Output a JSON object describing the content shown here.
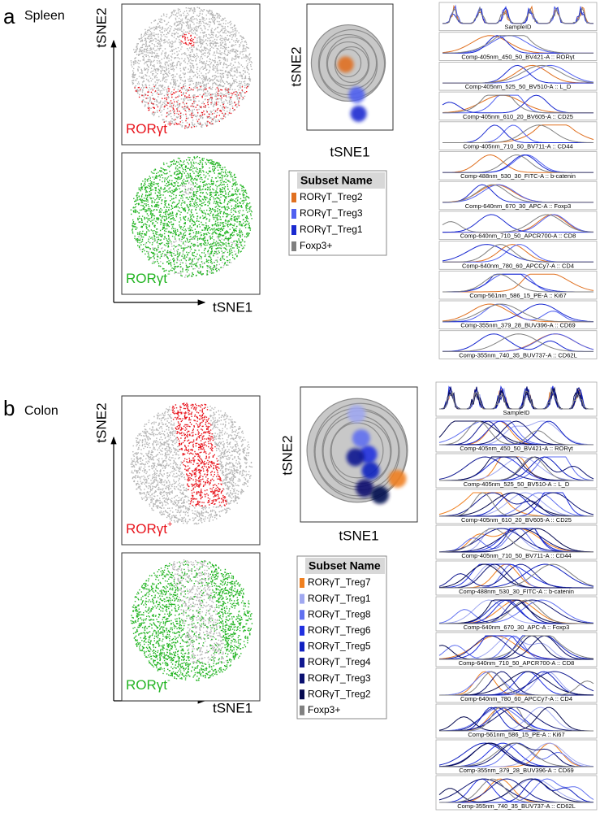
{
  "panels": [
    {
      "letter": "a",
      "tissue": "Spleen",
      "tsne": {
        "y_label": "tSNE2",
        "x_label": "tSNE1",
        "positive": {
          "label": "RORγt",
          "sign": "+",
          "color": "#e8141c"
        },
        "negative": {
          "label": "RORγt",
          "sign": "-",
          "color": "#22b422"
        }
      },
      "overview": {
        "y_label": "tSNE2",
        "x_label": "tSNE1"
      },
      "legend": {
        "title": "Subset Name",
        "items": [
          {
            "name": "RORγT_Treg2",
            "color": "#e07020"
          },
          {
            "name": "RORγT_Treg3",
            "color": "#5060f0"
          },
          {
            "name": "RORγT_Treg1",
            "color": "#1a2ad0"
          },
          {
            "name": "Foxp3+",
            "color": "#808080"
          }
        ]
      },
      "histograms": [
        "SampleID",
        "Comp-405nm_450_50_BV421-A :: RORγt",
        "Comp-405nm_525_50_BV510-A :: L_D",
        "Comp-405nm_610_20_BV605-A :: CD25",
        "Comp-405nm_710_50_BV711-A :: CD44",
        "Comp-488nm_530_30_FITC-A :: b-catenin",
        "Comp-640nm_670_30_APC-A :: Foxp3",
        "Comp-640nm_710_50_APCR700-A :: CD8",
        "Comp-640nm_780_60_APCCy7-A :: CD4",
        "Comp-561nm_586_15_PE-A :: Ki67",
        "Comp-355nm_379_28_BUV396-A :: CD69",
        "Comp-355nm_740_35_BUV737-A :: CD62L"
      ]
    },
    {
      "letter": "b",
      "tissue": "Colon",
      "tsne": {
        "y_label": "tSNE2",
        "x_label": "tSNE1",
        "positive": {
          "label": "RORγt",
          "sign": "+",
          "color": "#e8141c"
        },
        "negative": {
          "label": "RORγt",
          "sign": "-",
          "color": "#22b422"
        }
      },
      "overview": {
        "y_label": "tSNE2",
        "x_label": "tSNE1"
      },
      "legend": {
        "title": "Subset Name",
        "items": [
          {
            "name": "RORγT_Treg7",
            "color": "#f08020"
          },
          {
            "name": "RORγT_Treg1",
            "color": "#a0a8f0"
          },
          {
            "name": "RORγT_Treg8",
            "color": "#6070f0"
          },
          {
            "name": "RORγT_Treg6",
            "color": "#2030e0"
          },
          {
            "name": "RORγT_Treg5",
            "color": "#1020c0"
          },
          {
            "name": "RORγT_Treg4",
            "color": "#101890"
          },
          {
            "name": "RORγT_Treg3",
            "color": "#0a1070"
          },
          {
            "name": "RORγT_Treg2",
            "color": "#060a50"
          },
          {
            "name": "Foxp3+",
            "color": "#808080"
          }
        ]
      },
      "histograms": [
        "SampleID",
        "Comp-405nm_450_50_BV421-A :: RORγt",
        "Comp-405nm_525_50_BV510-A :: L_D",
        "Comp-405nm_610_20_BV605-A :: CD25",
        "Comp-405nm_710_50_BV711-A :: CD44",
        "Comp-488nm_530_30_FITC-A :: b-catenin",
        "Comp-640nm_670_30_APC-A :: Foxp3",
        "Comp-640nm_710_50_APCR700-A :: CD8",
        "Comp-640nm_780_60_APCCy7-A :: CD4",
        "Comp-561nm_586_15_PE-A :: Ki67",
        "Comp-355nm_379_28_BUV396-A :: CD69",
        "Comp-355nm_740_35_BUV737-A :: CD62L"
      ]
    }
  ]
}
